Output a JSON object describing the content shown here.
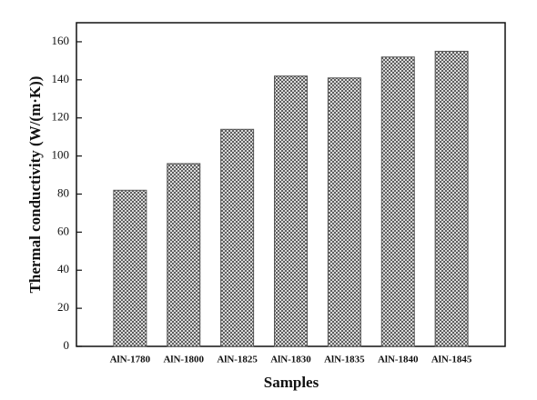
{
  "chart_data": {
    "type": "bar",
    "x_label": "Samples",
    "y_label": "Thermal conductivity (W/(m·K))",
    "categories": [
      "AlN-1780",
      "AlN-1800",
      "AlN-1825",
      "AlN-1830",
      "AlN-1835",
      "AlN-1840",
      "AlN-1845"
    ],
    "values": [
      82,
      96,
      114,
      142,
      141,
      152,
      155
    ],
    "color": "#555555",
    "ylim": [
      0,
      170
    ],
    "yticks": [
      0,
      20,
      40,
      60,
      80,
      100,
      120,
      140,
      160
    ],
    "grid": false
  }
}
